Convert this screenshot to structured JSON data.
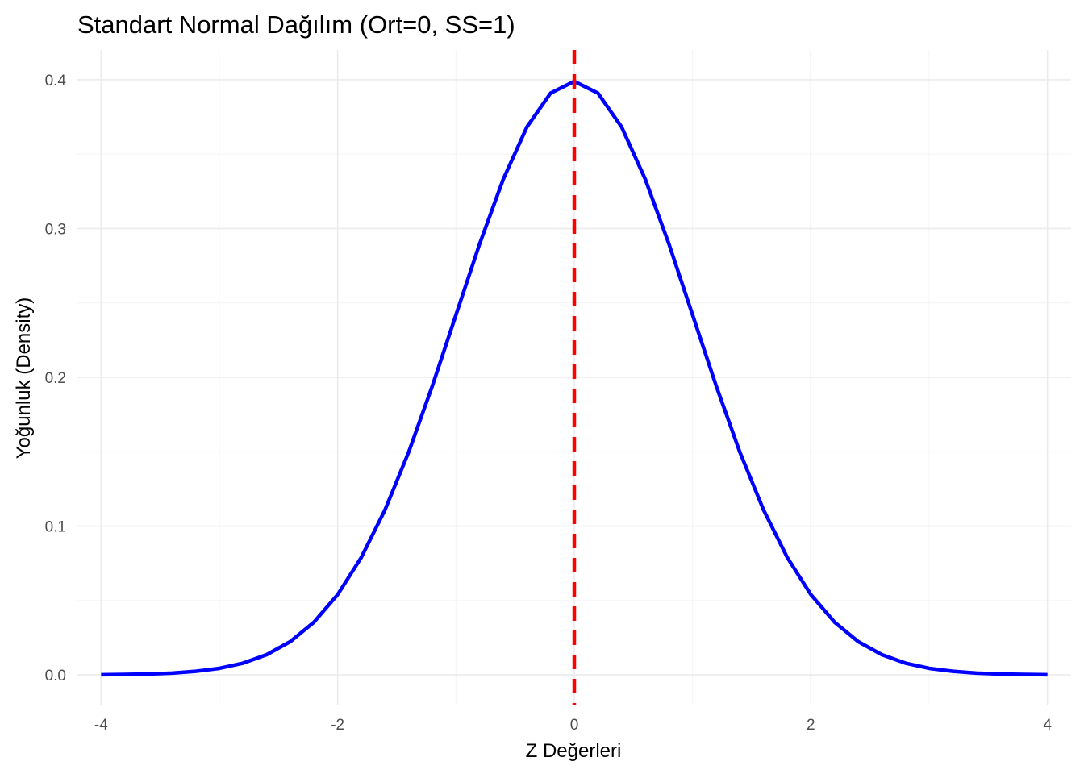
{
  "chart_data": {
    "type": "line",
    "title": "Standart Normal Dağılım (Ort=0, SS=1)",
    "xlabel": "Z Değerleri",
    "ylabel": "Yoğunluk (Density)",
    "xlim": [
      -4.2,
      4.2
    ],
    "ylim": [
      -0.02,
      0.42
    ],
    "x_ticks": [
      -4,
      -2,
      0,
      2,
      4
    ],
    "x_tick_labels": [
      "-4",
      "-2",
      "0",
      "2",
      "4"
    ],
    "x_minor_ticks": [
      -3,
      -1,
      1,
      3
    ],
    "y_ticks": [
      0.0,
      0.1,
      0.2,
      0.3,
      0.4
    ],
    "y_tick_labels": [
      "0.0",
      "0.1",
      "0.2",
      "0.3",
      "0.4"
    ],
    "y_minor_ticks": [
      0.05,
      0.15,
      0.25,
      0.35
    ],
    "grid": true,
    "series": [
      {
        "color": "#0000ff",
        "style": "solid",
        "x": [
          -4.0,
          -3.8,
          -3.6,
          -3.4,
          -3.2,
          -3.0,
          -2.8,
          -2.6,
          -2.4,
          -2.2,
          -2.0,
          -1.8,
          -1.6,
          -1.4,
          -1.2,
          -1.0,
          -0.8,
          -0.6,
          -0.4,
          -0.2,
          0.0,
          0.2,
          0.4,
          0.6,
          0.8,
          1.0,
          1.2,
          1.4,
          1.6,
          1.8,
          2.0,
          2.2,
          2.4,
          2.6,
          2.8,
          3.0,
          3.2,
          3.4,
          3.6,
          3.8,
          4.0
        ],
        "y": [
          0.0001,
          0.0003,
          0.0006,
          0.0012,
          0.0024,
          0.0044,
          0.0079,
          0.0136,
          0.0224,
          0.0355,
          0.054,
          0.079,
          0.1109,
          0.1497,
          0.1942,
          0.242,
          0.2897,
          0.3332,
          0.3683,
          0.391,
          0.3989,
          0.391,
          0.3683,
          0.3332,
          0.2897,
          0.242,
          0.1942,
          0.1497,
          0.1109,
          0.079,
          0.054,
          0.0355,
          0.0224,
          0.0136,
          0.0079,
          0.0044,
          0.0024,
          0.0012,
          0.0006,
          0.0003,
          0.0001
        ]
      }
    ],
    "reference_line": {
      "orientation": "vertical",
      "x": 0,
      "color": "#ff0000",
      "style": "dashed"
    },
    "colors": {
      "grid_major": "#ebebeb",
      "grid_minor": "#f5f5f5",
      "tick_text": "#4d4d4d",
      "title_text": "#000000"
    }
  }
}
